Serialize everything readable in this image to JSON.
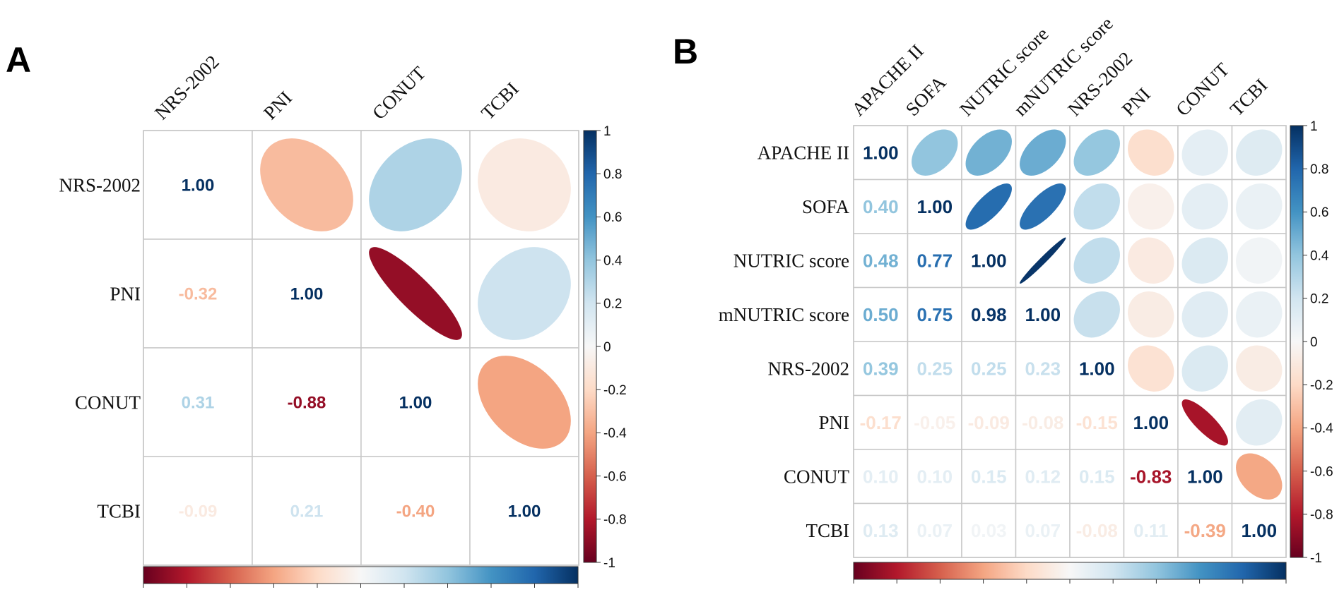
{
  "chart_data": [
    {
      "type": "heatmap",
      "panel_label": "A",
      "method": "upper: ellipse, lower: number",
      "variables": [
        "NRS-2002",
        "PNI",
        "CONUT",
        "TCBI"
      ],
      "matrix": [
        [
          1.0,
          -0.32,
          0.31,
          -0.09
        ],
        [
          -0.32,
          1.0,
          -0.88,
          0.21
        ],
        [
          0.31,
          -0.88,
          1.0,
          -0.4
        ],
        [
          -0.09,
          0.21,
          -0.4,
          1.0
        ]
      ],
      "colorbar": {
        "range": [
          -1,
          1
        ],
        "ticks": [
          "1",
          "0.8",
          "0.6",
          "0.4",
          "0.2",
          "0",
          "-0.2",
          "-0.4",
          "-0.6",
          "-0.8",
          "-1"
        ]
      }
    },
    {
      "type": "heatmap",
      "panel_label": "B",
      "method": "upper: ellipse, lower: number",
      "variables": [
        "APACHE II",
        "SOFA",
        "NUTRIC score",
        "mNUTRIC score",
        "NRS-2002",
        "PNI",
        "CONUT",
        "TCBI"
      ],
      "matrix": [
        [
          1.0,
          0.4,
          0.48,
          0.5,
          0.39,
          -0.17,
          0.1,
          0.13
        ],
        [
          0.4,
          1.0,
          0.77,
          0.75,
          0.25,
          -0.05,
          0.1,
          0.07
        ],
        [
          0.48,
          0.77,
          1.0,
          0.98,
          0.25,
          -0.09,
          0.15,
          0.03
        ],
        [
          0.5,
          0.75,
          0.98,
          1.0,
          0.23,
          -0.08,
          0.12,
          0.07
        ],
        [
          0.39,
          0.25,
          0.25,
          0.23,
          1.0,
          -0.15,
          0.15,
          -0.08
        ],
        [
          -0.17,
          -0.05,
          -0.09,
          -0.08,
          -0.15,
          1.0,
          -0.83,
          0.11
        ],
        [
          0.1,
          0.1,
          0.15,
          0.12,
          0.15,
          -0.83,
          1.0,
          -0.39
        ],
        [
          0.13,
          0.07,
          0.03,
          0.07,
          -0.08,
          0.11,
          -0.39,
          1.0
        ]
      ],
      "colorbar": {
        "range": [
          -1,
          1
        ],
        "ticks": [
          "1",
          "0.8",
          "0.6",
          "0.4",
          "0.2",
          "0",
          "-0.2",
          "-0.4",
          "-0.6",
          "-0.8",
          "-1"
        ]
      }
    }
  ]
}
